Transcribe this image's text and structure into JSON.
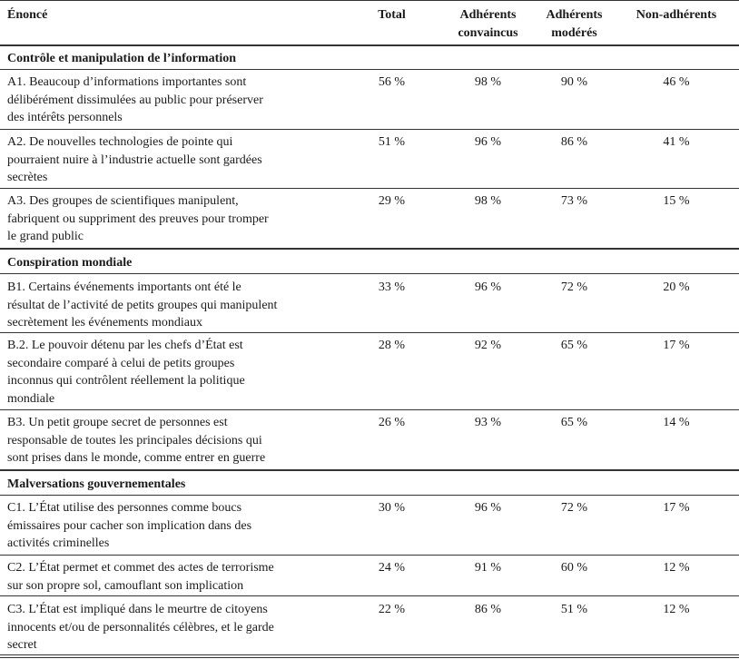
{
  "columns": {
    "enonce": "Énoncé",
    "total": "Total",
    "convaincus_line1": "Adhérents",
    "convaincus_line2": "convaincus",
    "moderes_line1": "Adhérents",
    "moderes_line2": "modérés",
    "non_adherents": "Non-adhérents"
  },
  "sections": [
    {
      "title": "Contrôle et manipulation de l’information",
      "rows": [
        {
          "lines": [
            "A1. Beaucoup d’informations importantes sont",
            "délibérément dissimulées au public pour préserver",
            "des intérêts personnels"
          ],
          "total": "56 %",
          "convaincus": "98 %",
          "moderes": "90 %",
          "non_adherents": "46 %"
        },
        {
          "lines": [
            "A2. De nouvelles technologies de pointe qui",
            "pourraient nuire à l’industrie actuelle sont gardées",
            "secrètes"
          ],
          "total": "51 %",
          "convaincus": "96 %",
          "moderes": "86 %",
          "non_adherents": "41 %"
        },
        {
          "lines": [
            "A3. Des groupes de scientifiques manipulent,",
            "fabriquent ou suppriment des preuves pour tromper",
            "le grand public"
          ],
          "total": "29 %",
          "convaincus": "98 %",
          "moderes": "73 %",
          "non_adherents": "15 %"
        }
      ]
    },
    {
      "title": "Conspiration mondiale",
      "rows": [
        {
          "lines": [
            "B1. Certains événements importants ont été le",
            "résultat de l’activité de petits groupes qui manipulent",
            "secrètement les événements mondiaux"
          ],
          "total": "33 %",
          "convaincus": "96 %",
          "moderes": "72 %",
          "non_adherents": "20 %"
        },
        {
          "lines": [
            "B.2. Le pouvoir détenu par les chefs d’État est",
            "secondaire comparé à celui de petits groupes",
            "inconnus qui contrôlent réellement la politique",
            "mondiale"
          ],
          "total": "28 %",
          "convaincus": "92 %",
          "moderes": "65 %",
          "non_adherents": "17 %"
        },
        {
          "lines": [
            "B3. Un petit groupe secret de personnes est",
            "responsable de toutes les principales décisions qui",
            "sont prises dans le monde, comme entrer en guerre"
          ],
          "total": "26 %",
          "convaincus": "93 %",
          "moderes": "65 %",
          "non_adherents": "14 %"
        }
      ]
    },
    {
      "title": "Malversations gouvernementales",
      "rows": [
        {
          "lines": [
            "C1. L’État utilise des personnes comme boucs",
            "émissaires pour cacher son implication dans des",
            "activités criminelles"
          ],
          "total": "30 %",
          "convaincus": "96 %",
          "moderes": "72 %",
          "non_adherents": "17 %"
        },
        {
          "lines": [
            "C2. L’État permet et commet des actes de terrorisme",
            "sur son propre sol, camouflant son implication"
          ],
          "total": "24 %",
          "convaincus": "91 %",
          "moderes": "60 %",
          "non_adherents": "12 %"
        },
        {
          "lines": [
            "C3. L’État est impliqué dans le meurtre de citoyens",
            "innocents et/ou de personnalités célèbres, et le garde",
            "secret"
          ],
          "total": "22 %",
          "convaincus": "86 %",
          "moderes": "51 %",
          "non_adherents": "12 %"
        }
      ]
    }
  ]
}
